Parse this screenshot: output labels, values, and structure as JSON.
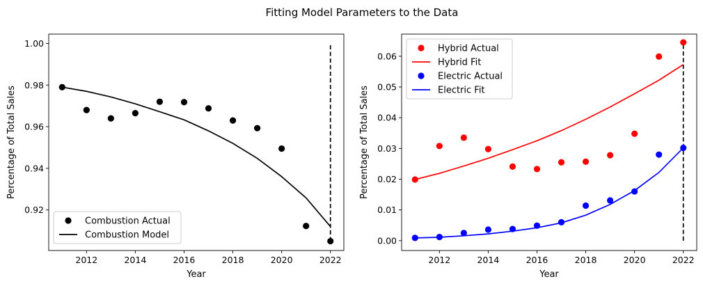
{
  "title": "Fitting Model Parameters to the Data",
  "chart_data": [
    {
      "type": "scatter",
      "xlabel": "Year",
      "ylabel": "Percentage of Total Sales",
      "xlim": [
        2010.45,
        2022.55
      ],
      "ylim": [
        0.9005,
        1.0045
      ],
      "xticks": [
        2012,
        2014,
        2016,
        2018,
        2020,
        2022
      ],
      "yticks": [
        0.92,
        0.94,
        0.96,
        0.98,
        1.0
      ],
      "ytick_labels": [
        "0.92",
        "0.94",
        "0.96",
        "0.98",
        "1.00"
      ],
      "legend_position": "lower-left",
      "vline": {
        "x": 2022,
        "y0": 0.905,
        "y1": 1.0,
        "style": "dashed",
        "color": "#000000"
      },
      "series": [
        {
          "name": "Combustion Actual",
          "kind": "scatter",
          "color": "#000000",
          "x": [
            2011,
            2012,
            2013,
            2014,
            2015,
            2016,
            2017,
            2018,
            2019,
            2020,
            2021,
            2022
          ],
          "y": [
            0.979,
            0.968,
            0.964,
            0.9665,
            0.972,
            0.9718,
            0.9688,
            0.963,
            0.9593,
            0.9495,
            0.9123,
            0.905
          ]
        },
        {
          "name": "Combustion Model",
          "kind": "line",
          "color": "#000000",
          "x": [
            2011,
            2012,
            2013,
            2014,
            2015,
            2016,
            2017,
            2018,
            2019,
            2020,
            2021,
            2022
          ],
          "y": [
            0.979,
            0.977,
            0.9743,
            0.971,
            0.9672,
            0.9633,
            0.958,
            0.952,
            0.9448,
            0.936,
            0.9258,
            0.912
          ]
        }
      ]
    },
    {
      "type": "scatter",
      "xlabel": "Year",
      "ylabel": "Percentage of Total Sales",
      "xlim": [
        2010.45,
        2022.55
      ],
      "ylim": [
        -0.0032,
        0.0672
      ],
      "xticks": [
        2012,
        2014,
        2016,
        2018,
        2020,
        2022
      ],
      "yticks": [
        0.0,
        0.01,
        0.02,
        0.03,
        0.04,
        0.05,
        0.06
      ],
      "ytick_labels": [
        "0.00",
        "0.01",
        "0.02",
        "0.03",
        "0.04",
        "0.05",
        "0.06"
      ],
      "legend_position": "upper-left",
      "vline": {
        "x": 2022,
        "y0": 0.0,
        "y1": 0.0645,
        "style": "dashed",
        "color": "#000000"
      },
      "series": [
        {
          "name": "Hybrid Actual",
          "kind": "scatter",
          "color": "#ff0000",
          "x": [
            2011,
            2012,
            2013,
            2014,
            2015,
            2016,
            2017,
            2018,
            2019,
            2020,
            2021,
            2022
          ],
          "y": [
            0.0199,
            0.0308,
            0.0335,
            0.0298,
            0.0241,
            0.0233,
            0.0255,
            0.0257,
            0.0278,
            0.0348,
            0.0599,
            0.0645
          ]
        },
        {
          "name": "Hybrid Fit",
          "kind": "line",
          "color": "#ff0000",
          "x": [
            2011,
            2012,
            2013,
            2014,
            2015,
            2016,
            2017,
            2018,
            2019,
            2020,
            2021,
            2022
          ],
          "y": [
            0.0199,
            0.0219,
            0.0243,
            0.0268,
            0.0296,
            0.0325,
            0.0358,
            0.0395,
            0.0435,
            0.0478,
            0.0522,
            0.0573
          ]
        },
        {
          "name": "Electric Actual",
          "kind": "scatter",
          "color": "#0000ff",
          "x": [
            2011,
            2012,
            2013,
            2014,
            2015,
            2016,
            2017,
            2018,
            2019,
            2020,
            2021,
            2022
          ],
          "y": [
            0.0009,
            0.0012,
            0.0025,
            0.0036,
            0.0038,
            0.0049,
            0.006,
            0.0114,
            0.0131,
            0.016,
            0.028,
            0.0302
          ]
        },
        {
          "name": "Electric Fit",
          "kind": "line",
          "color": "#0000ff",
          "x": [
            2011,
            2012,
            2013,
            2014,
            2015,
            2016,
            2017,
            2018,
            2019,
            2020,
            2021,
            2022
          ],
          "y": [
            0.0009,
            0.0011,
            0.0016,
            0.0022,
            0.0031,
            0.0042,
            0.0058,
            0.0083,
            0.0118,
            0.0163,
            0.0222,
            0.0302
          ]
        }
      ]
    }
  ]
}
